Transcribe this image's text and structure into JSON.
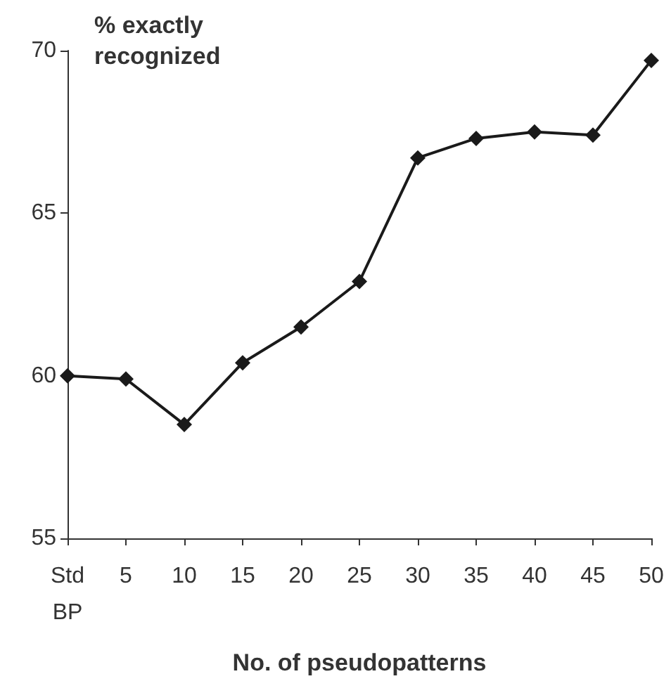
{
  "chart_data": {
    "type": "line",
    "ylabel": "% exactly recognized",
    "xlabel": "No. of pseudopatterns",
    "categories": [
      "Std\nBP",
      "5",
      "10",
      "15",
      "20",
      "25",
      "30",
      "35",
      "40",
      "45",
      "50"
    ],
    "series": [
      {
        "color": "#1a1a1a",
        "values": [
          60.0,
          59.9,
          58.5,
          60.4,
          61.5,
          62.9,
          66.7,
          67.3,
          67.5,
          67.4,
          69.7
        ]
      }
    ],
    "ylim": [
      55,
      70
    ],
    "yticks": [
      55,
      60,
      65,
      70
    ],
    "grid": false,
    "marker": "diamond",
    "line_style": "solid"
  }
}
